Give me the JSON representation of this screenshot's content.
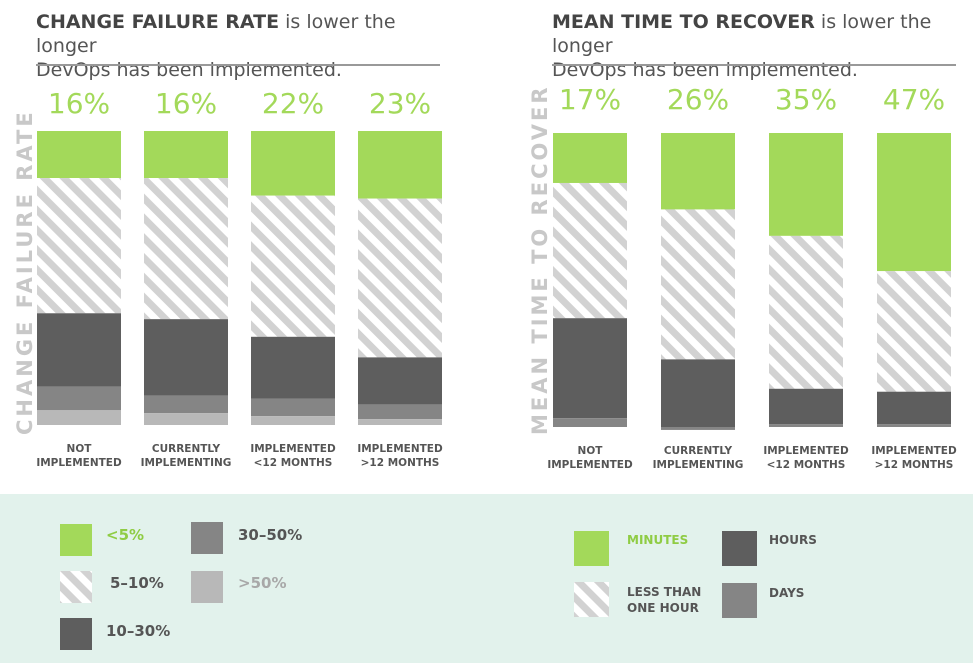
{
  "colors": {
    "green": "#a3d95a",
    "stripe": "#d2d2d2",
    "dark": "#5e5e5e",
    "mid": "#858585",
    "light": "#b8b8b8",
    "legend_bg": "#e2f2ec"
  },
  "left": {
    "title_bold": "CHANGE FAILURE RATE",
    "title_rest_1": " is lower the longer",
    "title_line_2": "DevOps has been implemented.",
    "ylabel": "CHANGE FAILURE RATE"
  },
  "right": {
    "title_bold": "MEAN TIME TO RECOVER",
    "title_rest_1": " is lower the longer",
    "title_line_2": "DevOps has been implemented.",
    "ylabel": "MEAN TIME TO RECOVER"
  },
  "legend_left": {
    "items": [
      {
        "label": "<5%"
      },
      {
        "label": "5–10%"
      },
      {
        "label": "10–30%"
      },
      {
        "label": "30–50%"
      },
      {
        "label": ">50%"
      }
    ]
  },
  "legend_right": {
    "items": [
      {
        "label": "MINUTES"
      },
      {
        "label_1": "LESS THAN",
        "label_2": "ONE HOUR"
      },
      {
        "label": "HOURS"
      },
      {
        "label": "DAYS"
      }
    ]
  },
  "chart_data": [
    {
      "type": "bar",
      "stacked": true,
      "title": "CHANGE FAILURE RATE is lower the longer DevOps has been implemented.",
      "ylabel": "CHANGE FAILURE RATE",
      "categories": [
        [
          "NOT",
          "IMPLEMENTED"
        ],
        [
          "CURRENTLY",
          "IMPLEMENTING"
        ],
        [
          "IMPLEMENTED",
          "<12 MONTHS"
        ],
        [
          "IMPLEMENTED",
          ">12 MONTHS"
        ]
      ],
      "top_labels": [
        "16%",
        "16%",
        "22%",
        "23%"
      ],
      "series": [
        {
          "name": "<5%",
          "color": "green",
          "values": [
            16,
            16,
            22,
            23
          ]
        },
        {
          "name": "5–10%",
          "color": "stripe",
          "values": [
            46,
            48,
            48,
            54
          ]
        },
        {
          "name": "10–30%",
          "color": "dark",
          "values": [
            25,
            26,
            21,
            16
          ]
        },
        {
          "name": "30–50%",
          "color": "mid",
          "values": [
            8,
            6,
            6,
            5
          ]
        },
        {
          "name": ">50%",
          "color": "light",
          "values": [
            5,
            4,
            3,
            2
          ]
        }
      ],
      "ylim": [
        0,
        100
      ]
    },
    {
      "type": "bar",
      "stacked": true,
      "title": "MEAN TIME TO RECOVER is lower the longer DevOps has been implemented.",
      "ylabel": "MEAN TIME TO RECOVER",
      "categories": [
        [
          "NOT",
          "IMPLEMENTED"
        ],
        [
          "CURRENTLY",
          "IMPLEMENTING"
        ],
        [
          "IMPLEMENTED",
          "<12 MONTHS"
        ],
        [
          "IMPLEMENTED",
          ">12 MONTHS"
        ]
      ],
      "top_labels": [
        "17%",
        "26%",
        "35%",
        "47%"
      ],
      "series": [
        {
          "name": "MINUTES",
          "color": "green",
          "values": [
            17,
            26,
            35,
            47
          ]
        },
        {
          "name": "LESS THAN ONE HOUR",
          "color": "stripe",
          "values": [
            46,
            51,
            52,
            41
          ]
        },
        {
          "name": "HOURS",
          "color": "dark",
          "values": [
            34,
            23,
            12,
            11
          ]
        },
        {
          "name": "DAYS",
          "color": "mid",
          "values": [
            3,
            1,
            1,
            1
          ]
        }
      ],
      "ylim": [
        0,
        100
      ]
    }
  ]
}
